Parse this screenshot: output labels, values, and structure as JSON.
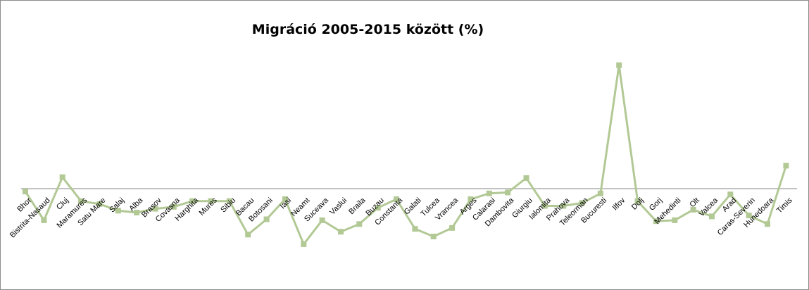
{
  "chart_data": {
    "type": "line",
    "title": "Migráció 2005-2015 között (%)",
    "xlabel": "",
    "ylabel": "",
    "grid": false,
    "legend": "none",
    "ylim": [
      -12,
      18
    ],
    "series_color": "#b2c995",
    "axis_color": "#868686",
    "categories": [
      "Bhor",
      "Bistrita-Nasaud",
      "Cluj",
      "Maramures",
      "Satu Mare",
      "Salaj",
      "Alba",
      "Brasov",
      "Covasna",
      "Harghita",
      "Mures",
      "Sibiu",
      "Bacau",
      "Botosani",
      "Iasi",
      "Neamt",
      "Suceava",
      "Vaslui",
      "Braila",
      "Buzau",
      "Constanta",
      "Galati",
      "Tulcea",
      "Vrancea",
      "Arges",
      "Calarasi",
      "Dambovita",
      "Giurgiu",
      "Ialomita",
      "Prahova",
      "Teleorman",
      "Bucuresti",
      "Ilfov",
      "Dolj",
      "Gorj",
      "Mehedinti",
      "Olt",
      "Valcea",
      "Arad",
      "Caras-Severin",
      "Hunedoara",
      "Timis"
    ],
    "values": [
      -0.3,
      -3.3,
      1.2,
      -1.3,
      -1.6,
      -2.3,
      -2.5,
      -2.1,
      -1.9,
      -1.3,
      -1.3,
      -1.3,
      -4.8,
      -3.2,
      -1.1,
      -5.8,
      -3.3,
      -4.5,
      -3.7,
      -2.0,
      -1.1,
      -4.2,
      -5.0,
      -4.1,
      -1.1,
      -0.5,
      -0.4,
      1.1,
      -1.8,
      -1.8,
      -1.5,
      -0.5,
      12.9,
      -1.3,
      -3.4,
      -3.3,
      -2.2,
      -2.9,
      -0.6,
      -2.8,
      -3.7,
      2.4
    ]
  }
}
